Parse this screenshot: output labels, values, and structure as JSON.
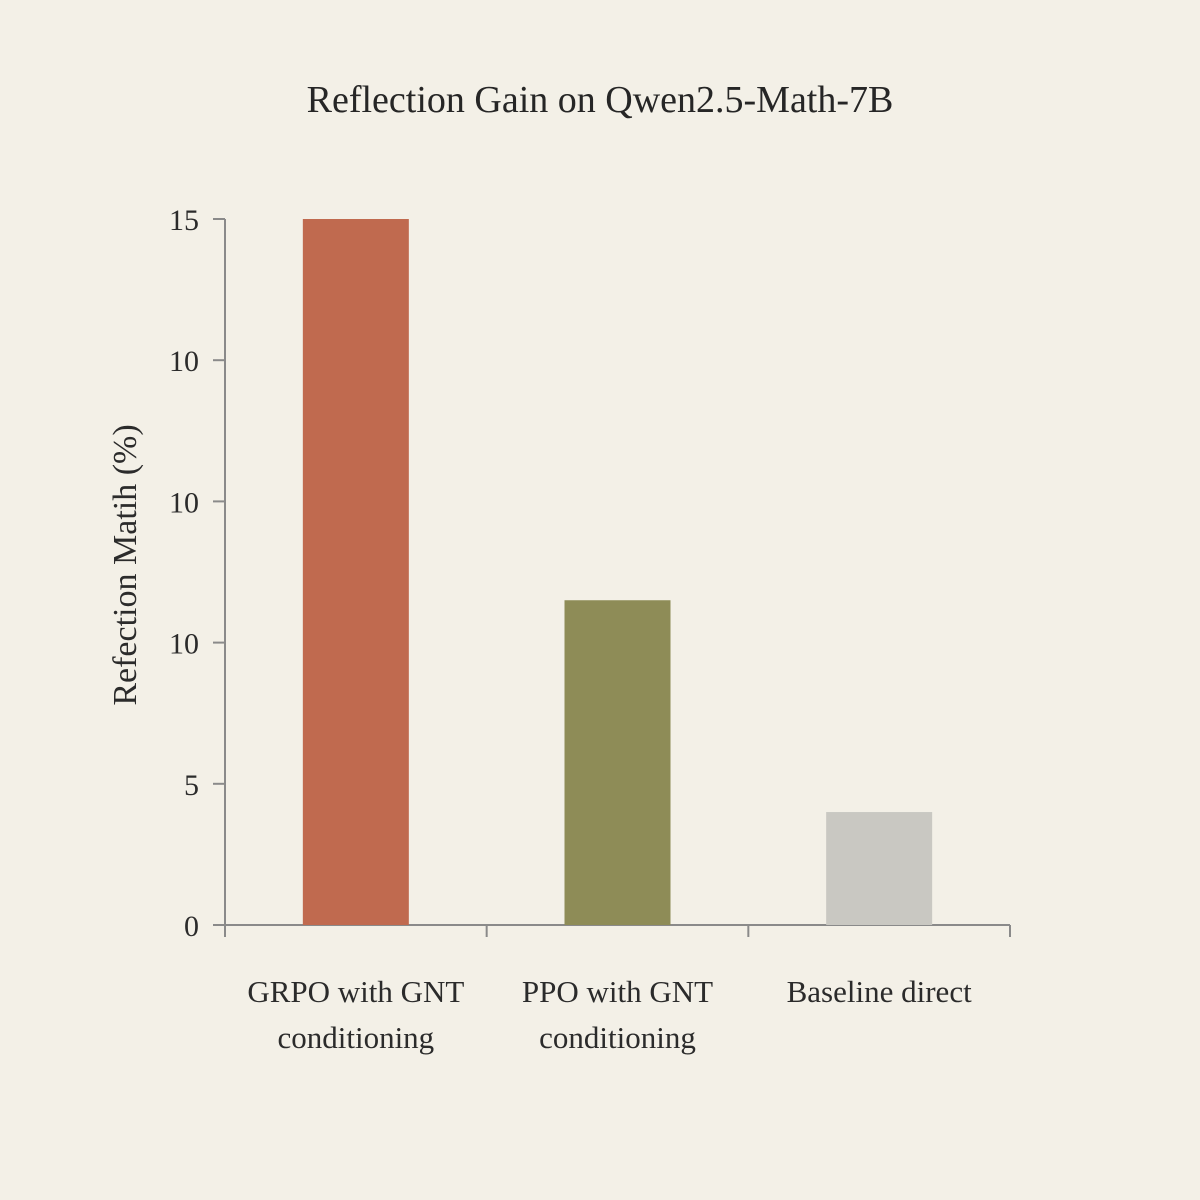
{
  "chart_data": {
    "type": "bar",
    "title": "Reflection Gain on Qwen2.5-Math-7B",
    "xlabel": "",
    "ylabel": "Refection Matih (%)",
    "categories": [
      [
        "GRPO with GNT",
        "conditioning"
      ],
      [
        "PPO with GNT",
        "conditioning"
      ],
      [
        "Baseline direct"
      ]
    ],
    "values": [
      15,
      6.9,
      2.4
    ],
    "y_tick_labels": [
      "0",
      "5",
      "10",
      "10",
      "10",
      "15"
    ],
    "ylim": [
      0,
      15
    ],
    "grid": false,
    "legend": "none",
    "colors": [
      "#c06a4f",
      "#8e8c57",
      "#c9c8c2"
    ],
    "axis_color": "#8a8a8a"
  }
}
